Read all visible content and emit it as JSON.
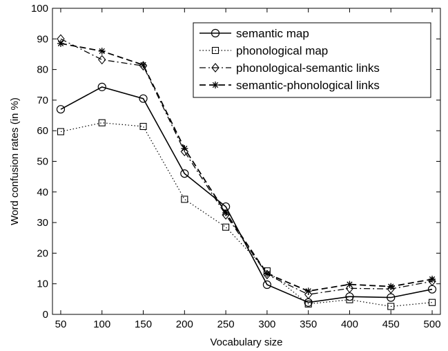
{
  "chart_data": {
    "type": "line",
    "xlabel": "Vocabulary size",
    "ylabel": "Word confusion rates (in %)",
    "xlim": [
      40,
      510
    ],
    "ylim": [
      0,
      100
    ],
    "x_ticks": [
      50,
      100,
      150,
      200,
      250,
      300,
      350,
      400,
      450,
      500
    ],
    "y_ticks": [
      0,
      10,
      20,
      30,
      40,
      50,
      60,
      70,
      80,
      90,
      100
    ],
    "grid": false,
    "legend_position": "top-right",
    "x": [
      50,
      100,
      150,
      200,
      250,
      300,
      350,
      400,
      450,
      500
    ],
    "series": [
      {
        "name": "semantic map",
        "marker": "circle",
        "line": "solid",
        "values": [
          67,
          74.3,
          70.5,
          46,
          35.2,
          9.7,
          3.9,
          5.8,
          5.5,
          8.2
        ]
      },
      {
        "name": "phonological map",
        "marker": "square",
        "line": "dotted",
        "values": [
          59.7,
          62.6,
          61.4,
          37.6,
          28.5,
          14.2,
          3.4,
          4.8,
          2.6,
          3.9
        ]
      },
      {
        "name": "phonological-semantic links",
        "marker": "diamond",
        "line": "dashdot",
        "values": [
          90,
          83.2,
          81.2,
          53.2,
          32.5,
          13,
          6.5,
          8.5,
          8.3,
          10.8
        ]
      },
      {
        "name": "semantic-phonological links",
        "marker": "star",
        "line": "dashed",
        "values": [
          88.5,
          86,
          81.5,
          54.2,
          33.2,
          13.3,
          7.6,
          9.8,
          9.1,
          11.5
        ]
      }
    ]
  }
}
